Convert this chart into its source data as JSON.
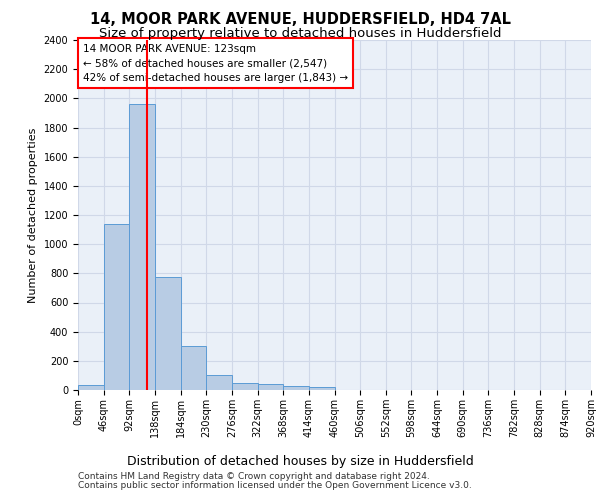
{
  "title1": "14, MOOR PARK AVENUE, HUDDERSFIELD, HD4 7AL",
  "title2": "Size of property relative to detached houses in Huddersfield",
  "xlabel": "Distribution of detached houses by size in Huddersfield",
  "ylabel": "Number of detached properties",
  "footer1": "Contains HM Land Registry data © Crown copyright and database right 2024.",
  "footer2": "Contains public sector information licensed under the Open Government Licence v3.0.",
  "bin_edges": [
    0,
    46,
    92,
    138,
    184,
    230,
    276,
    322,
    368,
    414,
    460,
    506,
    552,
    598,
    644,
    690,
    736,
    782,
    828,
    874,
    920
  ],
  "bar_heights": [
    35,
    1140,
    1960,
    775,
    300,
    100,
    50,
    40,
    25,
    20,
    0,
    0,
    0,
    0,
    0,
    0,
    0,
    0,
    0,
    0
  ],
  "bar_color": "#b8cce4",
  "bar_edge_color": "#5b9bd5",
  "property_size": 123,
  "vline_color": "red",
  "annotation_text": "14 MOOR PARK AVENUE: 123sqm\n← 58% of detached houses are smaller (2,547)\n42% of semi-detached houses are larger (1,843) →",
  "annotation_box_color": "red",
  "ylim": [
    0,
    2400
  ],
  "yticks": [
    0,
    200,
    400,
    600,
    800,
    1000,
    1200,
    1400,
    1600,
    1800,
    2000,
    2200,
    2400
  ],
  "grid_color": "#d0d8e8",
  "bg_color": "#eaf0f8",
  "title1_fontsize": 10.5,
  "title2_fontsize": 9.5,
  "xlabel_fontsize": 9,
  "ylabel_fontsize": 8,
  "tick_fontsize": 7,
  "annotation_fontsize": 7.5,
  "footer_fontsize": 6.5
}
